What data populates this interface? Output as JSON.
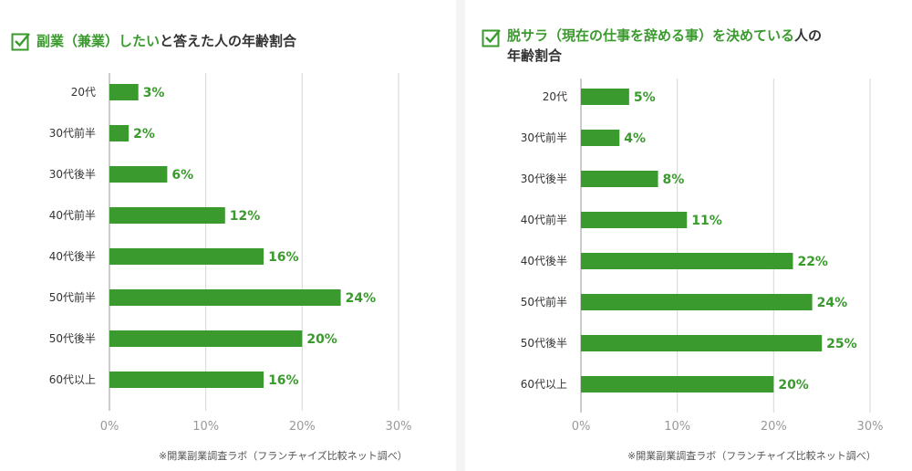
{
  "charts": [
    {
      "title_green": "副業（兼業）したい",
      "title_dark": "と答えた人の年齢割合",
      "source": "※開業副業調査ラボ（フランチャイズ比較ネット調べ）"
    },
    {
      "title_green": "脱サラ（現在の仕事を辞める事）を決めている",
      "title_dark": "人の",
      "title_line2": "年齢割合",
      "source": "※開業副業調査ラボ（フランチャイズ比較ネット調べ）"
    }
  ],
  "chart_data": [
    {
      "type": "bar",
      "orientation": "horizontal",
      "title": "副業（兼業）したいと答えた人の年齢割合",
      "categories": [
        "20代",
        "30代前半",
        "30代後半",
        "40代前半",
        "40代後半",
        "50代前半",
        "50代後半",
        "60代以上"
      ],
      "values": [
        3,
        2,
        6,
        12,
        16,
        24,
        20,
        16
      ],
      "value_labels": [
        "3%",
        "2%",
        "6%",
        "12%",
        "16%",
        "24%",
        "20%",
        "16%"
      ],
      "xlim": [
        0,
        30
      ],
      "ticks": [
        "0%",
        "10%",
        "20%",
        "30%"
      ],
      "grid": true,
      "bar_color": "#3a9a2e"
    },
    {
      "type": "bar",
      "orientation": "horizontal",
      "title": "脱サラ（現在の仕事を辞める事）を決めている人の年齢割合",
      "categories": [
        "20代",
        "30代前半",
        "30代後半",
        "40代前半",
        "40代後半",
        "50代前半",
        "50代後半",
        "60代以上"
      ],
      "values": [
        5,
        4,
        8,
        11,
        22,
        24,
        25,
        20
      ],
      "value_labels": [
        "5%",
        "4%",
        "8%",
        "11%",
        "22%",
        "24%",
        "25%",
        "20%"
      ],
      "xlim": [
        0,
        30
      ],
      "ticks": [
        "0%",
        "10%",
        "20%",
        "30%"
      ],
      "grid": true,
      "bar_color": "#3a9a2e"
    }
  ]
}
